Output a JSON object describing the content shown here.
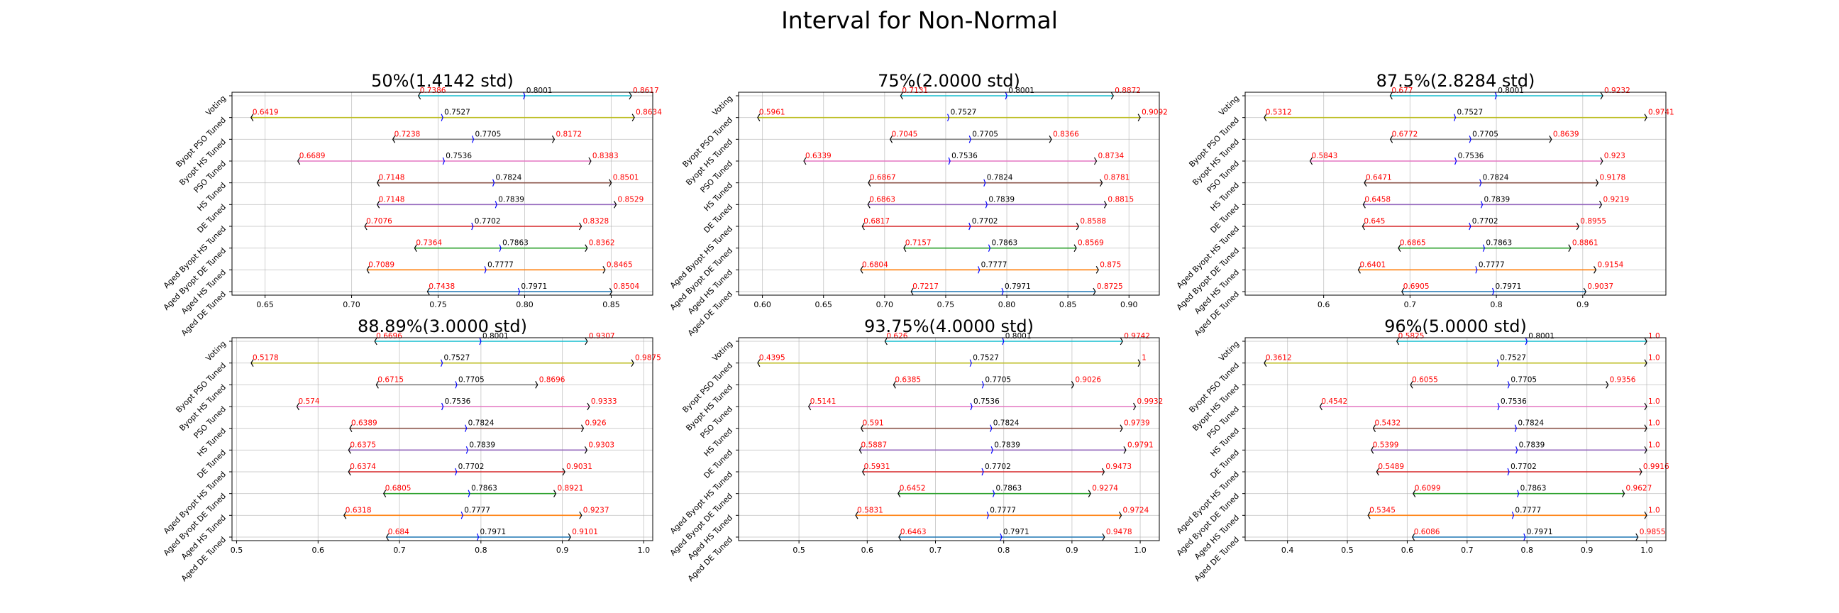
{
  "figure": {
    "title": "Interval for Non-Normal"
  },
  "chart_data": [
    {
      "type": "interval",
      "title": "50%(1.4142 std)",
      "categories": [
        "Voting",
        "Byopt PSO Tuned",
        "Byopt HS Tuned",
        "PSO Tuned",
        "HS Tuned",
        "DE Tuned",
        "Aged Byopt HS Tuned",
        "Aged Byopt DE Tuned",
        "Aged HS Tuned",
        "Aged DE Tuned"
      ],
      "lower": [
        0.7386,
        0.6419,
        0.7238,
        0.6689,
        0.7148,
        0.7148,
        0.7076,
        0.7364,
        0.7089,
        0.7438
      ],
      "mean": [
        0.8001,
        0.7527,
        0.7705,
        0.7536,
        0.7824,
        0.7839,
        0.7702,
        0.7863,
        0.7777,
        0.7971
      ],
      "upper": [
        0.8617,
        0.8634,
        0.8172,
        0.8383,
        0.8501,
        0.8529,
        0.8328,
        0.8362,
        0.8465,
        0.8504
      ],
      "xlim": [
        0.6309,
        0.874
      ],
      "xticks": [
        0.65,
        0.7,
        0.75,
        0.8,
        0.85
      ],
      "xticklabels": [
        "0.65",
        "0.70",
        "0.75",
        "0.80",
        "0.85"
      ],
      "grid": true
    },
    {
      "type": "interval",
      "title": "75%(2.0000 std)",
      "categories": [
        "Voting",
        "Byopt PSO Tuned",
        "Byopt HS Tuned",
        "PSO Tuned",
        "HS Tuned",
        "DE Tuned",
        "Aged Byopt HS Tuned",
        "Aged Byopt DE Tuned",
        "Aged HS Tuned",
        "Aged DE Tuned"
      ],
      "lower": [
        0.7131,
        0.5961,
        0.7045,
        0.6339,
        0.6867,
        0.6863,
        0.6817,
        0.7157,
        0.6804,
        0.7217
      ],
      "mean": [
        0.8001,
        0.7527,
        0.7705,
        0.7536,
        0.7824,
        0.7839,
        0.7702,
        0.7863,
        0.7777,
        0.7971
      ],
      "upper": [
        0.8872,
        0.9092,
        0.8366,
        0.8734,
        0.8781,
        0.8815,
        0.8588,
        0.8569,
        0.875,
        0.8725
      ],
      "xlim": [
        0.5805,
        0.9248
      ],
      "xticks": [
        0.6,
        0.65,
        0.7,
        0.75,
        0.8,
        0.85,
        0.9
      ],
      "xticklabels": [
        "0.60",
        "0.65",
        "0.70",
        "0.75",
        "0.80",
        "0.85",
        "0.90"
      ],
      "grid": true
    },
    {
      "type": "interval",
      "title": "87.5%(2.8284 std)",
      "categories": [
        "Voting",
        "Byopt PSO Tuned",
        "Byopt HS Tuned",
        "PSO Tuned",
        "HS Tuned",
        "DE Tuned",
        "Aged Byopt HS Tuned",
        "Aged Byopt DE Tuned",
        "Aged HS Tuned",
        "Aged DE Tuned"
      ],
      "lower": [
        0.677,
        0.5312,
        0.6772,
        0.5843,
        0.6471,
        0.6458,
        0.645,
        0.6865,
        0.6401,
        0.6905
      ],
      "mean": [
        0.8001,
        0.7527,
        0.7705,
        0.7536,
        0.7824,
        0.7839,
        0.7702,
        0.7863,
        0.7777,
        0.7971
      ],
      "upper": [
        0.9232,
        0.9741,
        0.8639,
        0.923,
        0.9178,
        0.9219,
        0.8955,
        0.8861,
        0.9154,
        0.9037
      ],
      "xlim": [
        0.5091,
        0.9963
      ],
      "xticks": [
        0.6,
        0.7,
        0.8,
        0.9
      ],
      "xticklabels": [
        "0.6",
        "0.7",
        "0.8",
        "0.9"
      ],
      "grid": true
    },
    {
      "type": "interval",
      "title": "88.89%(3.0000 std)",
      "categories": [
        "Voting",
        "Byopt PSO Tuned",
        "Byopt HS Tuned",
        "PSO Tuned",
        "HS Tuned",
        "DE Tuned",
        "Aged Byopt HS Tuned",
        "Aged Byopt DE Tuned",
        "Aged HS Tuned",
        "Aged DE Tuned"
      ],
      "lower": [
        0.6696,
        0.5178,
        0.6715,
        0.574,
        0.6389,
        0.6375,
        0.6374,
        0.6805,
        0.6318,
        0.684
      ],
      "mean": [
        0.8001,
        0.7527,
        0.7705,
        0.7536,
        0.7824,
        0.7839,
        0.7702,
        0.7863,
        0.7777,
        0.7971
      ],
      "upper": [
        0.9307,
        0.9875,
        0.8696,
        0.9333,
        0.926,
        0.9303,
        0.9031,
        0.8921,
        0.9237,
        0.9101
      ],
      "xlim": [
        0.4943,
        1.011
      ],
      "xticks": [
        0.5,
        0.6,
        0.7,
        0.8,
        0.9,
        1.0
      ],
      "xticklabels": [
        "0.5",
        "0.6",
        "0.7",
        "0.8",
        "0.9",
        "1.0"
      ],
      "grid": true
    },
    {
      "type": "interval",
      "title": "93.75%(4.0000 std)",
      "categories": [
        "Voting",
        "Byopt PSO Tuned",
        "Byopt HS Tuned",
        "PSO Tuned",
        "HS Tuned",
        "DE Tuned",
        "Aged Byopt HS Tuned",
        "Aged Byopt DE Tuned",
        "Aged HS Tuned",
        "Aged DE Tuned"
      ],
      "lower": [
        0.626,
        0.4395,
        0.6385,
        0.5141,
        0.591,
        0.5887,
        0.5931,
        0.6452,
        0.5831,
        0.6463
      ],
      "mean": [
        0.8001,
        0.7527,
        0.7705,
        0.7536,
        0.7824,
        0.7839,
        0.7702,
        0.7863,
        0.7777,
        0.7971
      ],
      "upper": [
        0.9742,
        1.0,
        0.9026,
        0.9932,
        0.9739,
        0.9791,
        0.9473,
        0.9274,
        0.9724,
        0.9478
      ],
      "xlim": [
        0.4115,
        1.028
      ],
      "xticks": [
        0.5,
        0.6,
        0.7,
        0.8,
        0.9,
        1.0
      ],
      "xticklabels": [
        "0.5",
        "0.6",
        "0.7",
        "0.8",
        "0.9",
        "1.0"
      ],
      "grid": true
    },
    {
      "type": "interval",
      "title": "96%(5.0000 std)",
      "categories": [
        "Voting",
        "Byopt PSO Tuned",
        "Byopt HS Tuned",
        "PSO Tuned",
        "HS Tuned",
        "DE Tuned",
        "Aged Byopt HS Tuned",
        "Aged Byopt DE Tuned",
        "Aged HS Tuned",
        "Aged DE Tuned"
      ],
      "lower": [
        0.5825,
        0.3612,
        0.6055,
        0.4542,
        0.5432,
        0.5399,
        0.5489,
        0.6099,
        0.5345,
        0.6086
      ],
      "mean": [
        0.8001,
        0.7527,
        0.7705,
        0.7536,
        0.7824,
        0.7839,
        0.7702,
        0.7863,
        0.7777,
        0.7971
      ],
      "upper": [
        1.0,
        1.0,
        0.9356,
        1.0,
        1.0,
        1.0,
        0.9916,
        0.9627,
        1.0,
        0.9855
      ],
      "upper_labels": [
        "1.0",
        "1.0",
        "0.9356",
        "1.0",
        "1.0",
        "1.0",
        "0.9916",
        "0.9627",
        "1.0",
        "0.9855"
      ],
      "xlim": [
        0.3293,
        1.032
      ],
      "xticks": [
        0.4,
        0.5,
        0.6,
        0.7,
        0.8,
        0.9,
        1.0
      ],
      "xticklabels": [
        "0.4",
        "0.5",
        "0.6",
        "0.7",
        "0.8",
        "0.9",
        "1.0"
      ],
      "grid": true
    }
  ],
  "series_colors": [
    "#17becf",
    "#bcbd22",
    "#7f7f7f",
    "#e377c2",
    "#8c564b",
    "#9467bd",
    "#d62728",
    "#2ca02c",
    "#ff7f0e",
    "#1f77b4"
  ],
  "mean_marker_color": "#0000ff",
  "bound_label_color": "#ff0000",
  "mean_label_color": "#000000"
}
